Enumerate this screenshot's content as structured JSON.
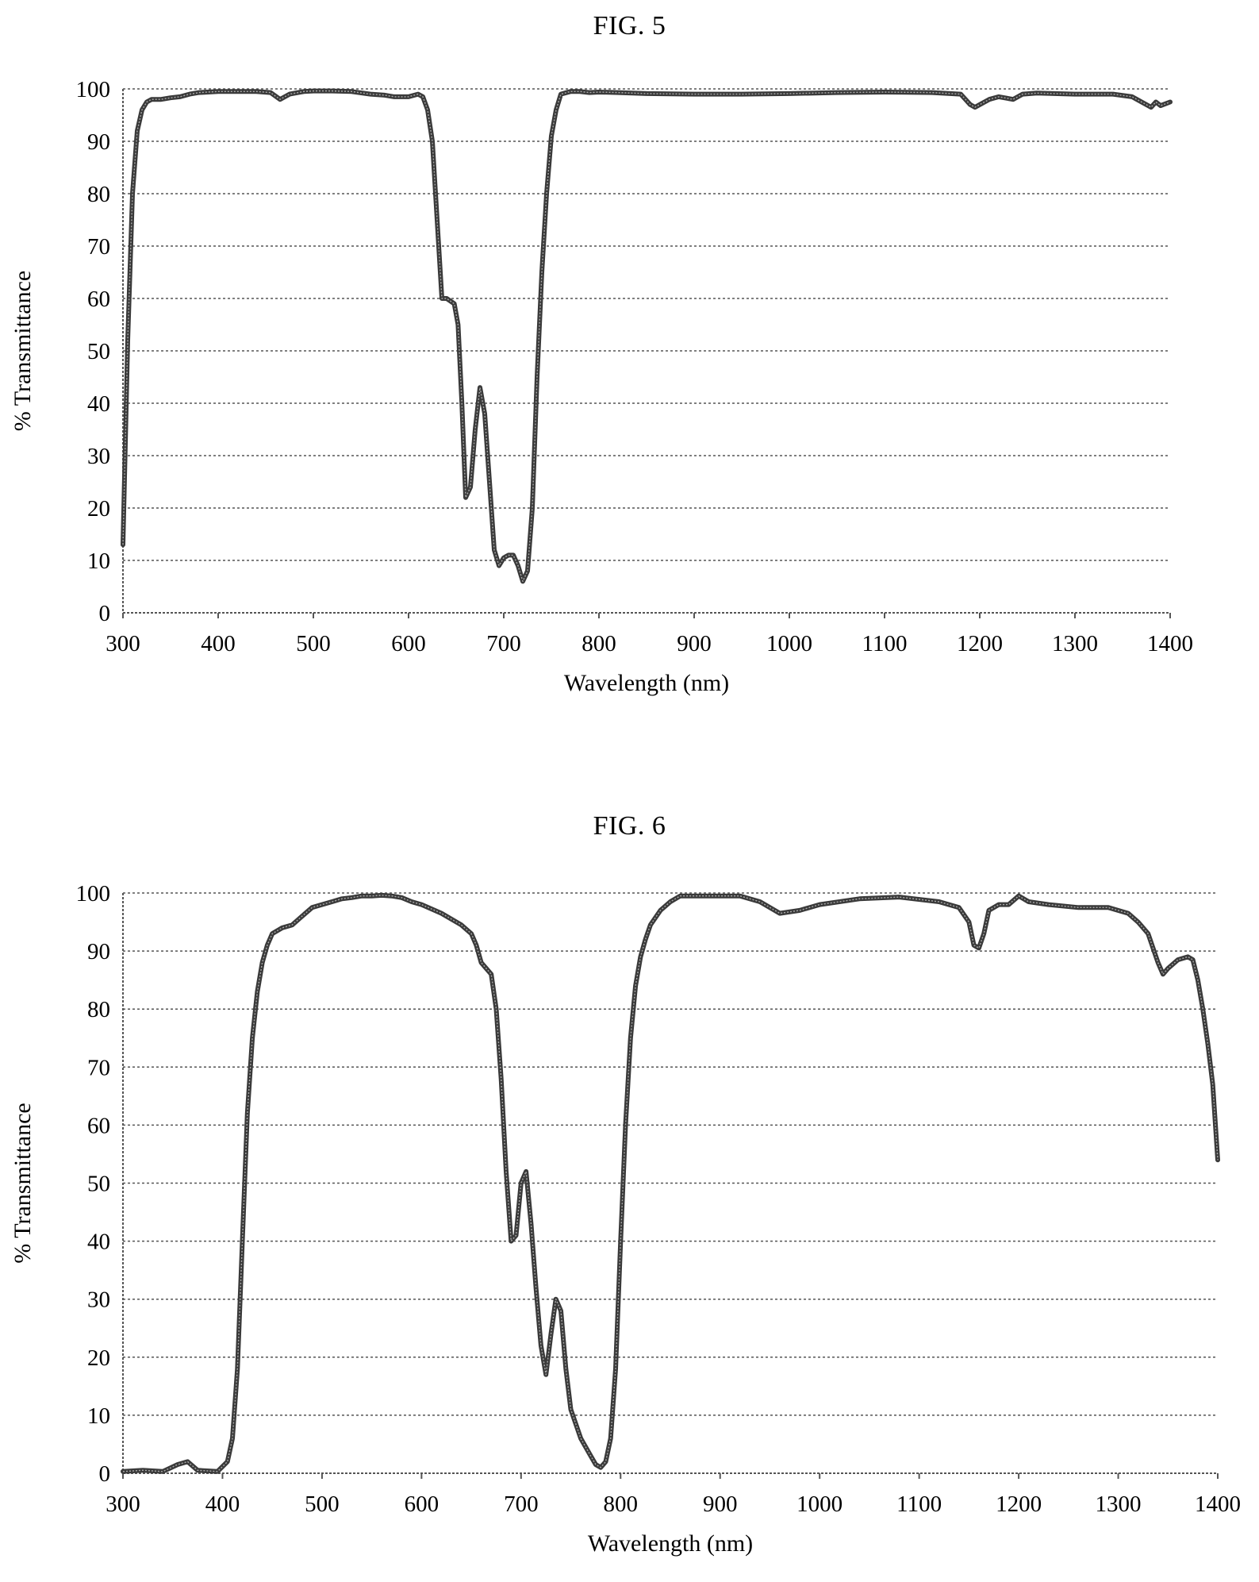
{
  "chart_data": [
    {
      "type": "line",
      "title": "FIG. 5",
      "xlabel": "Wavelength (nm)",
      "ylabel": "% Transmittance",
      "xlim": [
        300,
        1400
      ],
      "ylim": [
        0,
        100
      ],
      "x_ticks": [
        "300",
        "400",
        "500",
        "600",
        "700",
        "800",
        "900",
        "1000",
        "1100",
        "1200",
        "1300",
        "1400"
      ],
      "y_ticks": [
        "0",
        "10",
        "20",
        "30",
        "40",
        "50",
        "60",
        "70",
        "80",
        "90",
        "100"
      ],
      "grid": true,
      "legend": "none",
      "series": [
        {
          "x": [
            300,
            305,
            310,
            315,
            320,
            325,
            330,
            340,
            350,
            360,
            370,
            380,
            400,
            420,
            440,
            455,
            465,
            475,
            490,
            500,
            520,
            540,
            560,
            575,
            585,
            600,
            610,
            615,
            620,
            625,
            630,
            635,
            640,
            648,
            652,
            656,
            660,
            665,
            670,
            675,
            680,
            685,
            690,
            695,
            700,
            705,
            710,
            715,
            720,
            725,
            730,
            735,
            740,
            745,
            750,
            755,
            760,
            770,
            780,
            790,
            800,
            820,
            850,
            900,
            950,
            1000,
            1050,
            1100,
            1150,
            1180,
            1190,
            1195,
            1210,
            1220,
            1235,
            1245,
            1260,
            1300,
            1340,
            1360,
            1370,
            1380,
            1385,
            1390,
            1400
          ],
          "y": [
            13,
            52,
            80,
            92,
            96,
            97.5,
            98,
            98,
            98.3,
            98.5,
            99,
            99.3,
            99.5,
            99.5,
            99.5,
            99.3,
            98,
            99,
            99.5,
            99.6,
            99.6,
            99.5,
            99,
            98.8,
            98.5,
            98.5,
            99,
            98.5,
            96,
            90,
            75,
            60,
            60,
            59,
            55,
            40,
            22,
            24,
            35,
            43,
            38,
            25,
            12,
            9,
            10.5,
            11,
            11,
            9,
            6,
            8,
            20,
            45,
            65,
            80,
            91,
            96,
            99,
            99.5,
            99.5,
            99.3,
            99.4,
            99.3,
            99.1,
            99,
            99,
            99.1,
            99.3,
            99.4,
            99.3,
            99,
            97,
            96.5,
            98,
            98.5,
            98,
            99,
            99.2,
            99,
            99,
            98.5,
            97.5,
            96.5,
            97.5,
            96.8,
            97.5
          ]
        }
      ]
    },
    {
      "type": "line",
      "title": "FIG. 6",
      "xlabel": "Wavelength (nm)",
      "ylabel": "% Transmittance",
      "xlim": [
        300,
        1400
      ],
      "ylim": [
        0,
        100
      ],
      "x_ticks": [
        "300",
        "400",
        "500",
        "600",
        "700",
        "800",
        "900",
        "1000",
        "1100",
        "1200",
        "1300",
        "1400"
      ],
      "y_ticks": [
        "0",
        "10",
        "20",
        "30",
        "40",
        "50",
        "60",
        "70",
        "80",
        "90",
        "100"
      ],
      "grid": true,
      "legend": "none",
      "series": [
        {
          "x": [
            300,
            320,
            340,
            355,
            365,
            375,
            395,
            405,
            410,
            415,
            420,
            425,
            430,
            435,
            440,
            445,
            450,
            460,
            470,
            480,
            490,
            500,
            510,
            520,
            530,
            540,
            550,
            560,
            570,
            580,
            590,
            600,
            620,
            640,
            650,
            655,
            660,
            665,
            670,
            675,
            680,
            685,
            690,
            695,
            700,
            705,
            710,
            715,
            720,
            725,
            730,
            735,
            740,
            745,
            750,
            760,
            770,
            775,
            780,
            785,
            790,
            795,
            800,
            805,
            810,
            815,
            820,
            825,
            830,
            840,
            850,
            860,
            880,
            900,
            920,
            940,
            960,
            980,
            1000,
            1040,
            1080,
            1120,
            1140,
            1150,
            1155,
            1160,
            1165,
            1170,
            1180,
            1190,
            1200,
            1210,
            1230,
            1260,
            1290,
            1310,
            1320,
            1330,
            1340,
            1345,
            1350,
            1360,
            1370,
            1375,
            1380,
            1385,
            1390,
            1395,
            1400
          ],
          "y": [
            0.3,
            0.5,
            0.3,
            1.5,
            2,
            0.5,
            0.3,
            2,
            6,
            18,
            40,
            62,
            75,
            83,
            88,
            91,
            93,
            94,
            94.5,
            96,
            97.5,
            98,
            98.5,
            99,
            99.2,
            99.5,
            99.5,
            99.6,
            99.5,
            99.2,
            98.5,
            98,
            96.5,
            94.5,
            93,
            91,
            88,
            87,
            86,
            80,
            68,
            52,
            40,
            41,
            50,
            52,
            43,
            32,
            22,
            17,
            24,
            30,
            28,
            18,
            11,
            6,
            3,
            1.5,
            1,
            2,
            6,
            18,
            40,
            60,
            75,
            84,
            89,
            92,
            94.5,
            97,
            98.5,
            99.5,
            99.5,
            99.5,
            99.5,
            98.5,
            96.5,
            97,
            98,
            99,
            99.3,
            98.5,
            97.5,
            95,
            91,
            90.5,
            93,
            97,
            98,
            98,
            99.5,
            98.5,
            98,
            97.5,
            97.5,
            96.5,
            95,
            93,
            88,
            86,
            87,
            88.5,
            89,
            88.5,
            85,
            80,
            74,
            67,
            54
          ]
        }
      ]
    }
  ]
}
